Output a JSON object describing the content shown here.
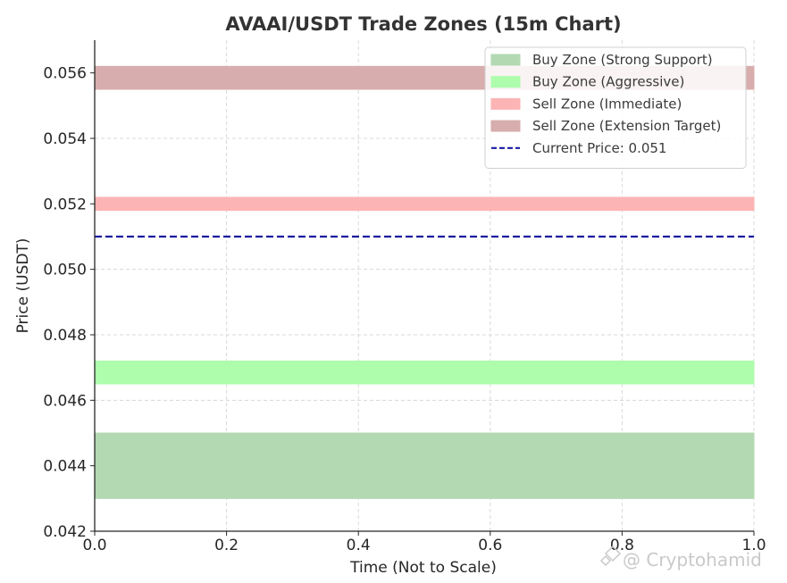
{
  "chart_data": {
    "type": "area",
    "title": "AVAAI/USDT Trade Zones (15m Chart)",
    "xlabel": "Time (Not to Scale)",
    "ylabel": "Price (USDT)",
    "xlim": [
      0.0,
      1.0
    ],
    "ylim": [
      0.042,
      0.057
    ],
    "x_ticks": [
      "0.0",
      "0.2",
      "0.4",
      "0.6",
      "0.8",
      "1.0"
    ],
    "y_ticks": [
      "0.042",
      "0.044",
      "0.046",
      "0.048",
      "0.050",
      "0.052",
      "0.054",
      "0.056"
    ],
    "grid": true,
    "legend_position": "top-right",
    "zones": [
      {
        "name": "Buy Zone (Strong Support)",
        "low": 0.043,
        "high": 0.045,
        "color": "#b3d9b3"
      },
      {
        "name": "Buy Zone (Aggressive)",
        "low": 0.0465,
        "high": 0.0472,
        "color": "#adfdad"
      },
      {
        "name": "Sell Zone (Immediate)",
        "low": 0.0518,
        "high": 0.0522,
        "color": "#fdb4b4"
      },
      {
        "name": "Sell Zone (Extension Target)",
        "low": 0.0555,
        "high": 0.0562,
        "color": "#d8adad"
      }
    ],
    "lines": [
      {
        "name": "Current Price: 0.051",
        "value": 0.051,
        "color": "#1a1aa0",
        "style": "dashed"
      }
    ]
  },
  "watermark": "@ Cryptohamid"
}
